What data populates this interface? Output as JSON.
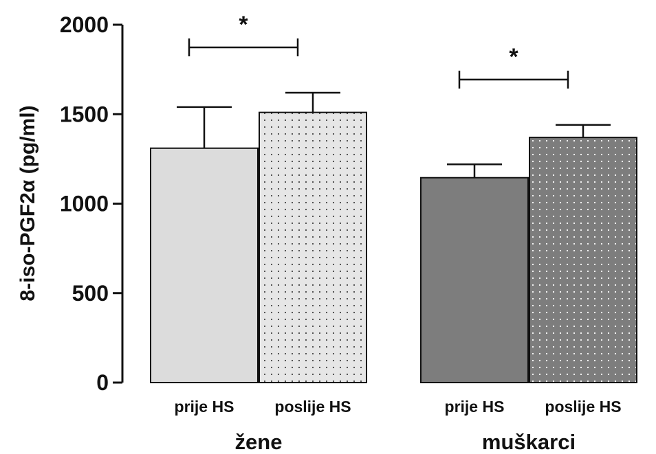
{
  "chart_data": {
    "type": "bar",
    "title": "",
    "ylabel": "8-iso-PGF2α (pg/ml)",
    "xlabel": "",
    "ylim": [
      0,
      2000
    ],
    "yticks": [
      0,
      500,
      1000,
      1500,
      2000
    ],
    "grid": false,
    "groups": [
      {
        "label": "žene",
        "bars": [
          {
            "label": "prije HS",
            "value": 1310,
            "error": 230,
            "color": "#dcdcdc",
            "pattern": "none"
          },
          {
            "label": "poslije HS",
            "value": 1510,
            "error": 110,
            "color": "#e6e6e6",
            "pattern": "dark-dots"
          }
        ],
        "significance": "*"
      },
      {
        "label": "muškarci",
        "bars": [
          {
            "label": "prije HS",
            "value": 1145,
            "error": 75,
            "color": "#7d7d7d",
            "pattern": "none"
          },
          {
            "label": "poslije HS",
            "value": 1370,
            "error": 70,
            "color": "#7d7d7d",
            "pattern": "light-dots"
          }
        ],
        "significance": "*"
      }
    ]
  }
}
